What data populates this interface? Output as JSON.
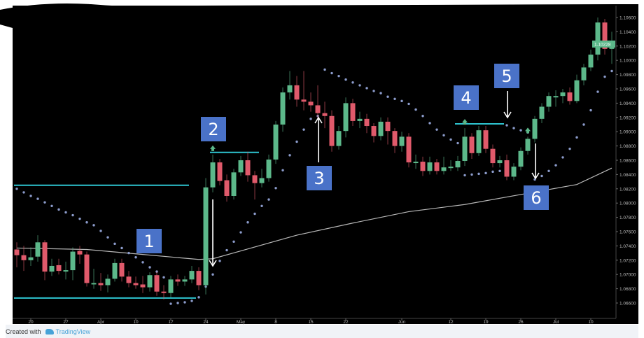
{
  "chart_data": {
    "type": "candlestick",
    "title": "",
    "colors": {
      "up": "#5cb88a",
      "down": "#e05a6b",
      "level": "#2ec4d0",
      "sar": "#8c9ccc",
      "ma": "#b8b8b8",
      "background": "#000000",
      "annotation": "#4a72c8",
      "last_price_tag": "#5cb88a"
    },
    "y_ticks": [
      "1.10600",
      "1.10400",
      "1.10200",
      "1.10000",
      "1.09800",
      "1.09600",
      "1.09400",
      "1.09200",
      "1.09000",
      "1.08800",
      "1.08600",
      "1.08400",
      "1.08200",
      "1.08000",
      "1.07800",
      "1.07600",
      "1.07400",
      "1.07200",
      "1.07000",
      "1.06800",
      "1.06600"
    ],
    "ylim": [
      1.066,
      1.106
    ],
    "last_price": "1.10228",
    "x_ticks": [
      {
        "label": "20",
        "date": "Mar 20"
      },
      {
        "label": "27",
        "date": "Mar 27"
      },
      {
        "label": "Apr",
        "date": "Apr 3"
      },
      {
        "label": "10",
        "date": "Apr 10"
      },
      {
        "label": "17",
        "date": "Apr 17"
      },
      {
        "label": "24",
        "date": "Apr 24"
      },
      {
        "label": "May",
        "date": "May 1"
      },
      {
        "label": "8",
        "date": "May 8"
      },
      {
        "label": "15",
        "date": "May 15"
      },
      {
        "label": "22",
        "date": "May 22"
      },
      {
        "label": "Jun",
        "date": "Jun 1"
      },
      {
        "label": "12",
        "date": "Jun 12"
      },
      {
        "label": "19",
        "date": "Jun 19"
      },
      {
        "label": "26",
        "date": "Jun 26"
      },
      {
        "label": "Jul",
        "date": "Jul 3"
      },
      {
        "label": "10",
        "date": "Jul 10"
      }
    ],
    "dates": [
      "Mar 16",
      "Mar 17",
      "Mar 20",
      "Mar 21",
      "Mar 22",
      "Mar 23",
      "Mar 24",
      "Mar 27",
      "Mar 28",
      "Mar 29",
      "Mar 30",
      "Mar 31",
      "Apr 3",
      "Apr 4",
      "Apr 5",
      "Apr 6",
      "Apr 7",
      "Apr 10",
      "Apr 11",
      "Apr 12",
      "Apr 13",
      "Apr 14",
      "Apr 17",
      "Apr 18",
      "Apr 19",
      "Apr 20",
      "Apr 21",
      "Apr 24",
      "Apr 25",
      "Apr 26",
      "Apr 27",
      "Apr 28",
      "May 1",
      "May 2",
      "May 3",
      "May 4",
      "May 5",
      "May 8",
      "May 9",
      "May 10",
      "May 11",
      "May 12",
      "May 15",
      "May 16",
      "May 17",
      "May 18",
      "May 19",
      "May 22",
      "May 23",
      "May 24",
      "May 25",
      "May 26",
      "May 29",
      "May 30",
      "May 31",
      "Jun 1",
      "Jun 2",
      "Jun 5",
      "Jun 6",
      "Jun 7",
      "Jun 8",
      "Jun 9",
      "Jun 12",
      "Jun 13",
      "Jun 14",
      "Jun 15",
      "Jun 16",
      "Jun 19",
      "Jun 20",
      "Jun 21",
      "Jun 22",
      "Jun 23",
      "Jun 26",
      "Jun 27",
      "Jun 28",
      "Jun 29",
      "Jun 30",
      "Jul 3",
      "Jul 4",
      "Jul 5",
      "Jul 6",
      "Jul 7",
      "Jul 10",
      "Jul 11",
      "Jul 12",
      "Jul 13"
    ],
    "ohlc": [
      [
        1.0735,
        1.0745,
        1.071,
        1.0727
      ],
      [
        1.0727,
        1.074,
        1.0705,
        1.072
      ],
      [
        1.072,
        1.0738,
        1.0712,
        1.0724
      ],
      [
        1.0725,
        1.0755,
        1.0718,
        1.0745
      ],
      [
        1.0745,
        1.0748,
        1.0692,
        1.0704
      ],
      [
        1.0704,
        1.0722,
        1.0698,
        1.0712
      ],
      [
        1.0713,
        1.0722,
        1.07,
        1.0705
      ],
      [
        1.0706,
        1.0718,
        1.0693,
        1.0706
      ],
      [
        1.0706,
        1.0738,
        1.0692,
        1.0732
      ],
      [
        1.0733,
        1.074,
        1.0715,
        1.0728
      ],
      [
        1.0728,
        1.0732,
        1.0683,
        1.0688
      ],
      [
        1.0688,
        1.0708,
        1.068,
        1.0688
      ],
      [
        1.0688,
        1.0702,
        1.0677,
        1.0685
      ],
      [
        1.0685,
        1.07,
        1.0675,
        1.0694
      ],
      [
        1.0694,
        1.0722,
        1.069,
        1.0716
      ],
      [
        1.0716,
        1.0722,
        1.069,
        1.0697
      ],
      [
        1.0697,
        1.0705,
        1.0682,
        1.0688
      ],
      [
        1.0688,
        1.0697,
        1.068,
        1.0685
      ],
      [
        1.0686,
        1.0698,
        1.0674,
        1.0682
      ],
      [
        1.0682,
        1.0703,
        1.0676,
        1.0699
      ],
      [
        1.0699,
        1.0704,
        1.067,
        1.0676
      ],
      [
        1.0676,
        1.0685,
        1.0665,
        1.0674
      ],
      [
        1.0674,
        1.0698,
        1.0668,
        1.0693
      ],
      [
        1.0693,
        1.07,
        1.0684,
        1.069
      ],
      [
        1.069,
        1.0698,
        1.0684,
        1.0693
      ],
      [
        1.0693,
        1.0712,
        1.0688,
        1.0705
      ],
      [
        1.0705,
        1.071,
        1.0678,
        1.0685
      ],
      [
        1.0685,
        1.0835,
        1.0672,
        1.0822
      ],
      [
        1.0822,
        1.0868,
        1.0815,
        1.0857
      ],
      [
        1.0857,
        1.0862,
        1.0825,
        1.0831
      ],
      [
        1.0832,
        1.084,
        1.0802,
        1.081
      ],
      [
        1.081,
        1.0848,
        1.0805,
        1.0843
      ],
      [
        1.0843,
        1.0866,
        1.0838,
        1.086
      ],
      [
        1.086,
        1.0872,
        1.083,
        1.0839
      ],
      [
        1.0839,
        1.0845,
        1.0805,
        1.0828
      ],
      [
        1.0828,
        1.0848,
        1.0822,
        1.0835
      ],
      [
        1.0835,
        1.0868,
        1.083,
        1.0861
      ],
      [
        1.0861,
        1.0915,
        1.0855,
        1.091
      ],
      [
        1.091,
        1.0962,
        1.09,
        1.0955
      ],
      [
        1.0955,
        1.0985,
        1.0945,
        1.0965
      ],
      [
        1.0965,
        1.0978,
        1.0935,
        1.0945
      ],
      [
        1.0945,
        1.0985,
        1.093,
        1.0942
      ],
      [
        1.0942,
        1.0955,
        1.0928,
        1.0937
      ],
      [
        1.0937,
        1.0965,
        1.0918,
        1.0926
      ],
      [
        1.0926,
        1.0942,
        1.0905,
        1.0922
      ],
      [
        1.0922,
        1.093,
        1.0872,
        1.088
      ],
      [
        1.088,
        1.0908,
        1.0875,
        1.0901
      ],
      [
        1.0901,
        1.0948,
        1.0892,
        1.094
      ],
      [
        1.094,
        1.0946,
        1.0908,
        1.0915
      ],
      [
        1.0915,
        1.0928,
        1.0905,
        1.0918
      ],
      [
        1.0918,
        1.0925,
        1.0898,
        1.0908
      ],
      [
        1.0908,
        1.0912,
        1.0885,
        1.0894
      ],
      [
        1.0894,
        1.092,
        1.0888,
        1.0914
      ],
      [
        1.0914,
        1.092,
        1.0882,
        1.0901
      ],
      [
        1.0901,
        1.0905,
        1.087,
        1.088
      ],
      [
        1.088,
        1.09,
        1.0872,
        1.0893
      ],
      [
        1.0893,
        1.0898,
        1.085,
        1.0857
      ],
      [
        1.0858,
        1.0868,
        1.0848,
        1.0858
      ],
      [
        1.0858,
        1.0865,
        1.0838,
        1.0845
      ],
      [
        1.0845,
        1.0865,
        1.084,
        1.0857
      ],
      [
        1.0857,
        1.0862,
        1.084,
        1.0845
      ],
      [
        1.0845,
        1.0865,
        1.084,
        1.085
      ],
      [
        1.0851,
        1.086,
        1.0845,
        1.0851
      ],
      [
        1.085,
        1.0866,
        1.0845,
        1.0859
      ],
      [
        1.0859,
        1.0905,
        1.0852,
        1.0893
      ],
      [
        1.0893,
        1.0898,
        1.0862,
        1.087
      ],
      [
        1.087,
        1.0908,
        1.0866,
        1.0902
      ],
      [
        1.0902,
        1.0908,
        1.087,
        1.0876
      ],
      [
        1.0876,
        1.0882,
        1.085,
        1.0856
      ],
      [
        1.0856,
        1.0866,
        1.085,
        1.086
      ],
      [
        1.086,
        1.0868,
        1.0832,
        1.0837
      ],
      [
        1.0837,
        1.0856,
        1.0832,
        1.0851
      ],
      [
        1.0851,
        1.0878,
        1.0846,
        1.0873
      ],
      [
        1.0873,
        1.0893,
        1.0868,
        1.089
      ],
      [
        1.089,
        1.0922,
        1.0885,
        1.0918
      ],
      [
        1.0918,
        1.094,
        1.0912,
        1.0935
      ],
      [
        1.0935,
        1.0955,
        1.0928,
        1.095
      ],
      [
        1.095,
        1.0958,
        1.0935,
        1.095
      ],
      [
        1.095,
        1.096,
        1.094,
        1.0955
      ],
      [
        1.0955,
        1.0962,
        1.0938,
        1.0943
      ],
      [
        1.0943,
        1.098,
        1.094,
        1.0972
      ],
      [
        1.0972,
        1.0995,
        1.0965,
        1.099
      ],
      [
        1.099,
        1.1015,
        1.0985,
        1.1008
      ],
      [
        1.1008,
        1.106,
        1.1,
        1.1053
      ],
      [
        1.1053,
        1.1058,
        1.1008,
        1.1016
      ],
      [
        1.1016,
        1.104,
        1.0995,
        1.1023
      ]
    ],
    "parabolic_sar": [
      1.082,
      1.0815,
      1.081,
      1.0806,
      1.0801,
      1.0796,
      1.0791,
      1.0787,
      1.0783,
      1.0778,
      1.0773,
      1.0769,
      1.0761,
      1.0752,
      1.0743,
      1.0737,
      1.073,
      1.0724,
      1.0717,
      1.071,
      1.0704,
      1.0696,
      1.0659,
      1.066,
      1.0661,
      1.0663,
      1.0668,
      1.0683,
      1.07,
      1.0719,
      1.0734,
      1.0746,
      1.0759,
      1.0773,
      1.0785,
      1.0796,
      1.0805,
      1.0821,
      1.0846,
      1.0867,
      1.0886,
      1.0903,
      1.0918,
      1.0922,
      1.0987,
      1.0982,
      1.0978,
      1.0973,
      1.0969,
      1.0965,
      1.0961,
      1.0957,
      1.0954,
      1.0949,
      1.0946,
      1.0943,
      1.0939,
      1.0931,
      1.0922,
      1.0912,
      1.0903,
      1.0895,
      1.0889,
      1.0884,
      1.0839,
      1.084,
      1.0841,
      1.0842,
      1.0844,
      1.0845,
      1.0909,
      1.0905,
      1.0902,
      1.0899,
      1.0833,
      1.0838,
      1.0845,
      1.0853,
      1.0864,
      1.0876,
      1.0892,
      1.091,
      1.093,
      1.0956,
      1.0977,
      1.0985
    ],
    "moving_average": [
      [
        "Mar 16",
        1.0737
      ],
      [
        "Mar 30",
        1.0735
      ],
      [
        "Apr 11",
        1.0728
      ],
      [
        "Apr 21",
        1.0721
      ],
      [
        "Apr 25",
        1.0722
      ],
      [
        "May 1",
        1.0733
      ],
      [
        "May 11",
        1.0755
      ],
      [
        "May 23",
        1.0772
      ],
      [
        "Jun 2",
        1.0788
      ],
      [
        "Jun 14",
        1.0798
      ],
      [
        "Jun 26",
        1.0812
      ],
      [
        "Jul 6",
        1.0826
      ],
      [
        "Jul 13",
        1.0849
      ]
    ],
    "levels": [
      {
        "price": 1.0825,
        "from": "Mar 16",
        "to": "Apr 19"
      },
      {
        "price": 1.0667,
        "from": "Mar 16",
        "to": "Apr 20"
      },
      {
        "price": 1.0871,
        "from": "Apr 25",
        "to": "May 3"
      },
      {
        "price": 1.0911,
        "from": "Jun 13",
        "to": "Jun 21"
      }
    ],
    "signal_arrows": [
      "Apr 25",
      "Jun 14",
      "Jun 27"
    ],
    "annotations": [
      "1",
      "2",
      "3",
      "4",
      "5",
      "6"
    ]
  },
  "footer": {
    "created_with": "Created with",
    "brand": "TradingView"
  }
}
